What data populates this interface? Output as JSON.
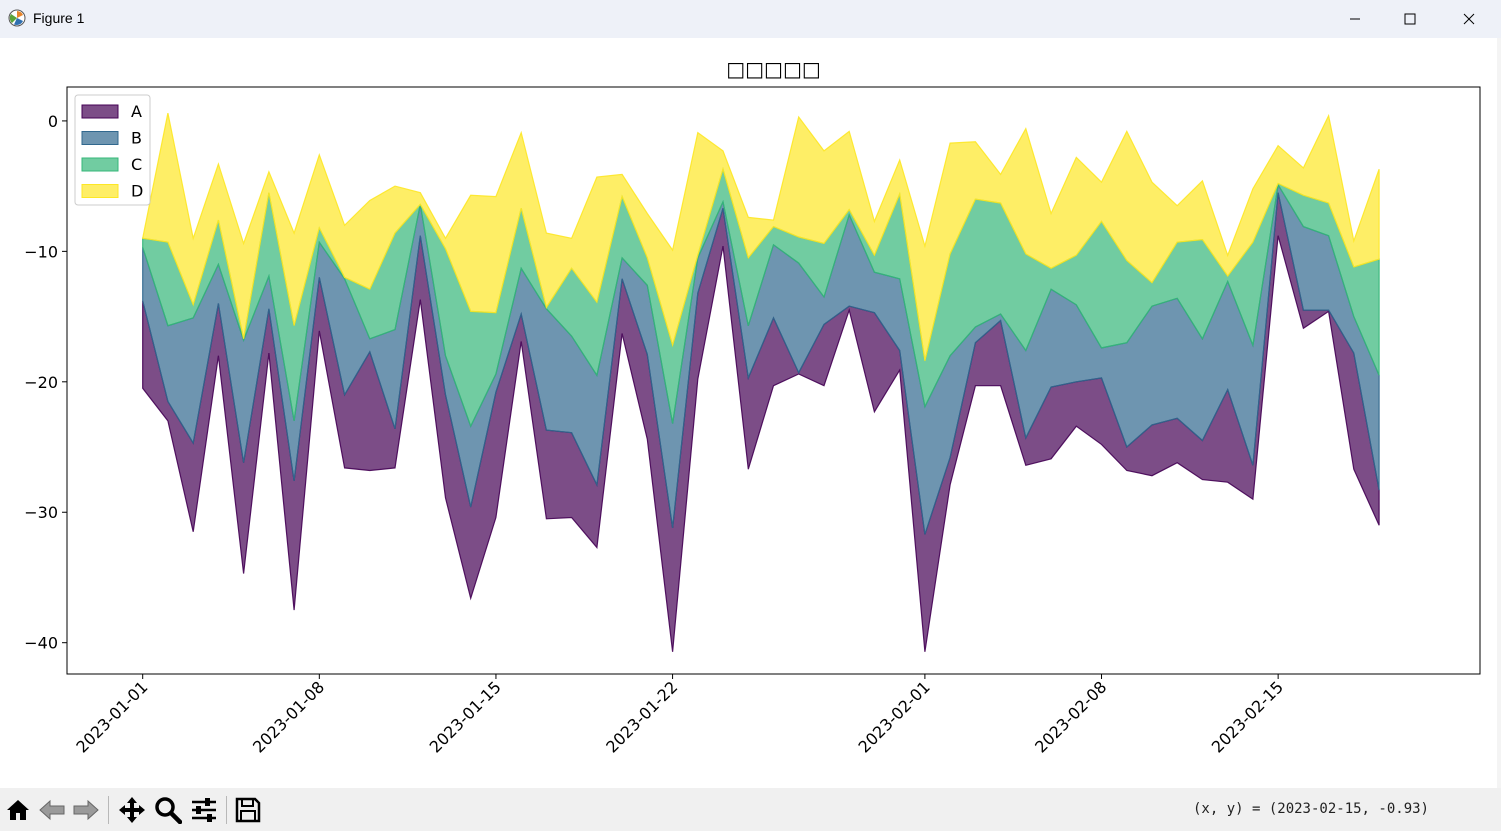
{
  "window": {
    "title": "Figure 1",
    "icon": "matplotlib-icon",
    "controls": [
      "minimize-icon",
      "maximize-icon",
      "close-icon"
    ]
  },
  "toolbar": {
    "buttons": [
      {
        "name": "home-button",
        "icon": "home-icon"
      },
      {
        "name": "back-button",
        "icon": "back-arrow-icon"
      },
      {
        "name": "forward-button",
        "icon": "forward-arrow-icon"
      },
      {
        "name": "pan-button",
        "icon": "move-icon"
      },
      {
        "name": "zoom-button",
        "icon": "zoom-icon"
      },
      {
        "name": "configure-button",
        "icon": "sliders-icon"
      },
      {
        "name": "save-button",
        "icon": "save-icon"
      }
    ],
    "coords": "(x, y) = (2023-02-15, -0.93)"
  },
  "chart_data": {
    "type": "area",
    "stacked": true,
    "title": "□□□□□",
    "xlabel": "",
    "ylabel": "",
    "x_start": "2023-01-01",
    "x_end": "2023-02-19",
    "xlim": [
      "2022-12-29",
      "2023-02-23"
    ],
    "ylim": [
      -42.4,
      2.6
    ],
    "yticks": [
      0,
      -10,
      -20,
      -30,
      -40
    ],
    "ytick_labels": [
      "0",
      "−10",
      "−20",
      "−30",
      "−40"
    ],
    "xticks": [
      "2023-01-01",
      "2023-01-08",
      "2023-01-15",
      "2023-01-22",
      "2023-02-01",
      "2023-02-08",
      "2023-02-15"
    ],
    "xtick_labels": [
      "2023-01-01",
      "2023-01-08",
      "2023-01-15",
      "2023-01-22",
      "2023-02-01",
      "2023-02-08",
      "2023-02-15"
    ],
    "grid": false,
    "legend": "top-left",
    "cumulative_boundaries": {
      "A": [
        -20.5,
        -23.0,
        -31.5,
        -18.0,
        -34.7,
        -17.8,
        -37.5,
        -16.1,
        -26.6,
        -26.8,
        -26.6,
        -13.7,
        -28.9,
        -36.6,
        -30.4,
        -16.9,
        -30.5,
        -30.4,
        -32.7,
        -16.3,
        -24.4,
        -40.7,
        -19.8,
        -9.6,
        -26.7,
        -20.3,
        -19.4,
        -20.3,
        -14.5,
        -22.3,
        -19.1,
        -40.7,
        -27.9,
        -20.3,
        -20.3,
        -26.4,
        -25.9,
        -23.4,
        -24.8,
        -26.8,
        -27.2,
        -26.2,
        -27.5,
        -27.7,
        -29.0,
        -8.8,
        -15.9,
        -14.6,
        -26.7,
        -31.0
      ],
      "B": [
        -13.8,
        -21.5,
        -24.7,
        -14.0,
        -26.2,
        -14.4,
        -27.6,
        -12.0,
        -21.0,
        -17.7,
        -23.6,
        -8.8,
        -21.0,
        -29.6,
        -20.8,
        -14.8,
        -23.7,
        -23.9,
        -27.9,
        -12.1,
        -17.9,
        -31.2,
        -13.2,
        -6.7,
        -19.7,
        -15.1,
        -19.3,
        -15.6,
        -14.2,
        -14.7,
        -17.6,
        -31.7,
        -25.8,
        -17.0,
        -15.3,
        -24.3,
        -20.4,
        -20.0,
        -19.7,
        -25.0,
        -23.3,
        -22.8,
        -24.5,
        -20.6,
        -26.4,
        -5.5,
        -14.5,
        -14.5,
        -17.8,
        -28.3
      ],
      "C": [
        -9.7,
        -15.7,
        -15.1,
        -11.0,
        -16.8,
        -11.9,
        -23.0,
        -9.3,
        -12.1,
        -16.7,
        -16.0,
        -6.4,
        -18.0,
        -23.4,
        -19.4,
        -11.3,
        -14.4,
        -16.5,
        -19.5,
        -10.5,
        -12.6,
        -23.2,
        -10.5,
        -6.2,
        -15.7,
        -9.5,
        -10.9,
        -13.5,
        -7.2,
        -11.6,
        -12.1,
        -21.9,
        -18.0,
        -15.8,
        -14.8,
        -17.6,
        -12.9,
        -14.1,
        -17.4,
        -17.0,
        -14.2,
        -13.6,
        -16.7,
        -12.3,
        -17.2,
        -4.9,
        -8.1,
        -8.8,
        -15.0,
        -19.5
      ],
      "D": [
        -9.0,
        -9.3,
        -14.1,
        -7.6,
        -16.7,
        -5.5,
        -15.7,
        -8.2,
        -12.0,
        -12.9,
        -8.6,
        -6.4,
        -9.8,
        -14.6,
        -14.7,
        -6.7,
        -14.3,
        -11.3,
        -13.9,
        -5.8,
        -10.5,
        -17.2,
        -10.3,
        -3.7,
        -10.5,
        -8.1,
        -8.9,
        -9.4,
        -6.8,
        -10.3,
        -5.6,
        -18.4,
        -10.2,
        -6.0,
        -6.3,
        -10.2,
        -11.3,
        -10.3,
        -7.7,
        -10.7,
        -12.4,
        -9.3,
        -9.1,
        -11.9,
        -9.3,
        -4.8,
        -5.7,
        -6.3,
        -11.2,
        -10.6
      ],
      "top": [
        -9.0,
        0.6,
        -9.0,
        -3.3,
        -9.4,
        -3.9,
        -8.6,
        -2.6,
        -8.0,
        -6.1,
        -5.0,
        -5.5,
        -9.0,
        -5.7,
        -5.8,
        -0.9,
        -8.6,
        -9.0,
        -4.3,
        -4.1,
        -7.1,
        -9.9,
        -0.9,
        -2.3,
        -7.4,
        -7.6,
        0.3,
        -2.3,
        -0.8,
        -7.7,
        -3.0,
        -9.6,
        -1.7,
        -1.6,
        -4.1,
        -0.6,
        -7.1,
        -2.8,
        -4.7,
        -0.8,
        -4.7,
        -6.5,
        -4.6,
        -10.3,
        -5.2,
        -1.9,
        -3.6,
        0.4,
        -9.2,
        -3.7
      ]
    },
    "series": [
      {
        "name": "A",
        "color": "#440154"
      },
      {
        "name": "B",
        "color": "#31688e"
      },
      {
        "name": "C",
        "color": "#35b779"
      },
      {
        "name": "D",
        "color": "#fde725"
      }
    ]
  }
}
